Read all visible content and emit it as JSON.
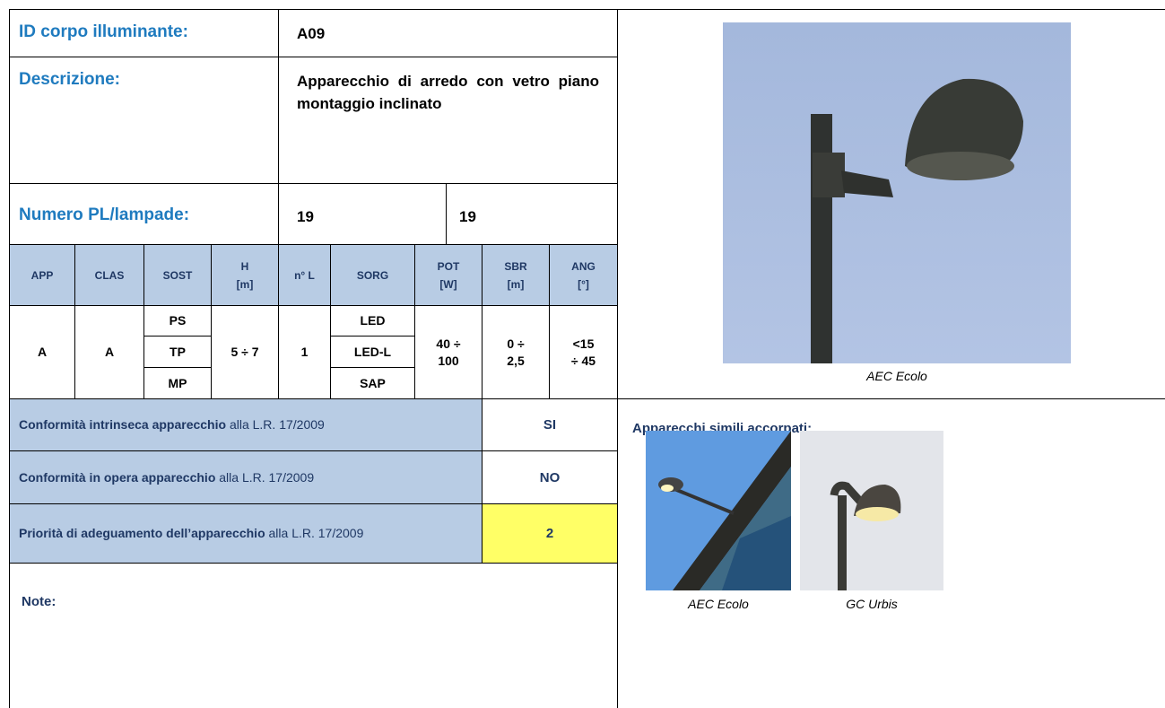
{
  "header": {
    "id_label": "ID corpo illuminante:",
    "id_value": "A09",
    "description_label": "Descrizione:",
    "description_value": "Apparecchio di arredo con vetro piano montaggio inclinato",
    "number_label": "Numero PL/lampade:",
    "number_values": [
      "19",
      "19"
    ]
  },
  "specs": {
    "columns": [
      "APP",
      "CLAS",
      "SOST",
      "H\n[m]",
      "n° L",
      "SORG",
      "POT\n[W]",
      "SBR\n[m]",
      "ANG\n[°]"
    ],
    "row": {
      "app": "A",
      "clas": "A",
      "sost": [
        "PS",
        "TP",
        "MP"
      ],
      "h": "5 ÷ 7",
      "nl": "1",
      "sorg": [
        "LED",
        "LED-L",
        "SAP"
      ],
      "pot": "40 ÷\n100",
      "sbr": "0 ÷\n2,5",
      "ang": "<15\n÷ 45"
    }
  },
  "conformity": [
    {
      "bold": "Conformità intrinseca apparecchio",
      "text": " alla L.R. 17/2009",
      "value": "SI"
    },
    {
      "bold": "Conformità in opera apparecchio",
      "text": " alla L.R. 17/2009",
      "value": "NO"
    },
    {
      "bold": "Priorità di adeguamento dell’apparecchio",
      "text": " alla L.R. 17/2009",
      "value": "2"
    }
  ],
  "notes_label": "Note:",
  "photo": {
    "caption": "AEC Ecolo"
  },
  "similar": {
    "title": "Apparecchi simili accorpati:",
    "items": [
      "AEC Ecolo",
      "GC Urbis"
    ]
  }
}
